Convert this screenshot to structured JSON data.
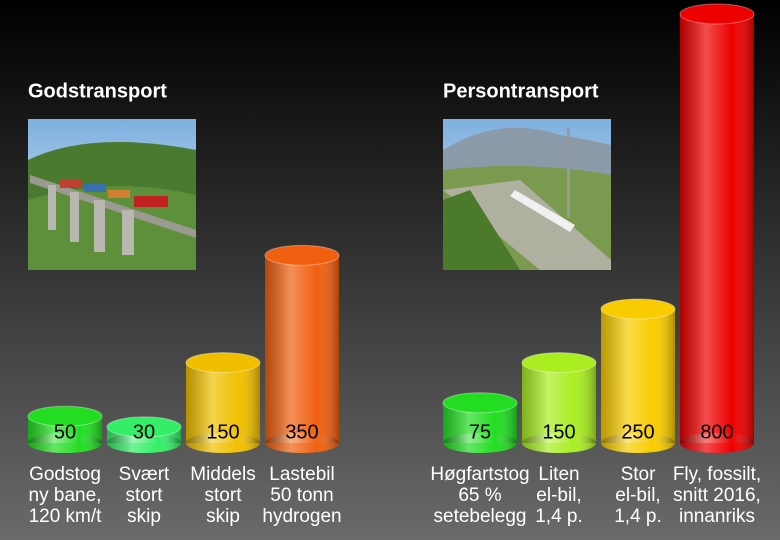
{
  "chart_data": [
    {
      "type": "bar",
      "title": "Godstransport",
      "categories": [
        [
          "Godstog",
          "ny bane,",
          "120 km/t"
        ],
        [
          "Svært",
          "stort",
          "skip"
        ],
        [
          "Middels",
          "stort",
          "skip"
        ],
        [
          "Lastebil",
          "50 tonn",
          "hydrogen"
        ]
      ],
      "values": [
        50,
        30,
        150,
        350
      ],
      "colors": [
        "#22dd22",
        "#33ee66",
        "#f0c000",
        "#f06010"
      ]
    },
    {
      "type": "bar",
      "title": "Persontransport",
      "categories": [
        [
          "Høgfartstog",
          "65 %",
          "setebelegg"
        ],
        [
          "Liten",
          "el-bil,",
          "1,4 p."
        ],
        [
          "Stor",
          "el-bil,",
          "1,4 p."
        ],
        [
          "Fly, fossilt,",
          "snitt 2016,",
          "innanriks"
        ]
      ],
      "values": [
        75,
        150,
        250,
        800
      ],
      "colors": [
        "#22dd22",
        "#aaee22",
        "#f8cc00",
        "#ee0000"
      ]
    }
  ]
}
